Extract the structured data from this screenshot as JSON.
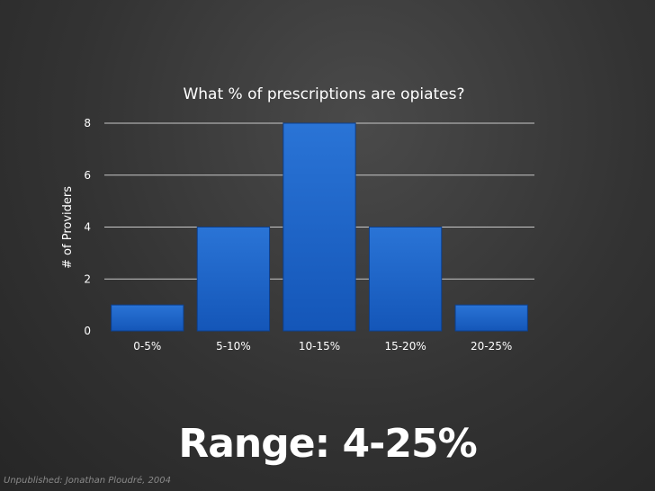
{
  "chart_data": {
    "type": "bar",
    "title": "What % of prescriptions are opiates?",
    "xlabel": "",
    "ylabel": "# of Providers",
    "categories": [
      "0-5%",
      "5-10%",
      "10-15%",
      "15-20%",
      "20-25%"
    ],
    "values": [
      1,
      4,
      8,
      4,
      1
    ],
    "ylim": [
      0,
      8
    ],
    "yticks": [
      0,
      2,
      4,
      6,
      8
    ],
    "grid": true,
    "legend": "none",
    "bar_color": "#1456b8",
    "bar_color_light": "#2a74d6",
    "grid_color": "#c8c8c8"
  },
  "headline": "Range: 4-25%",
  "credit": "Unpublished: Jonathan Ploudré, 2004"
}
